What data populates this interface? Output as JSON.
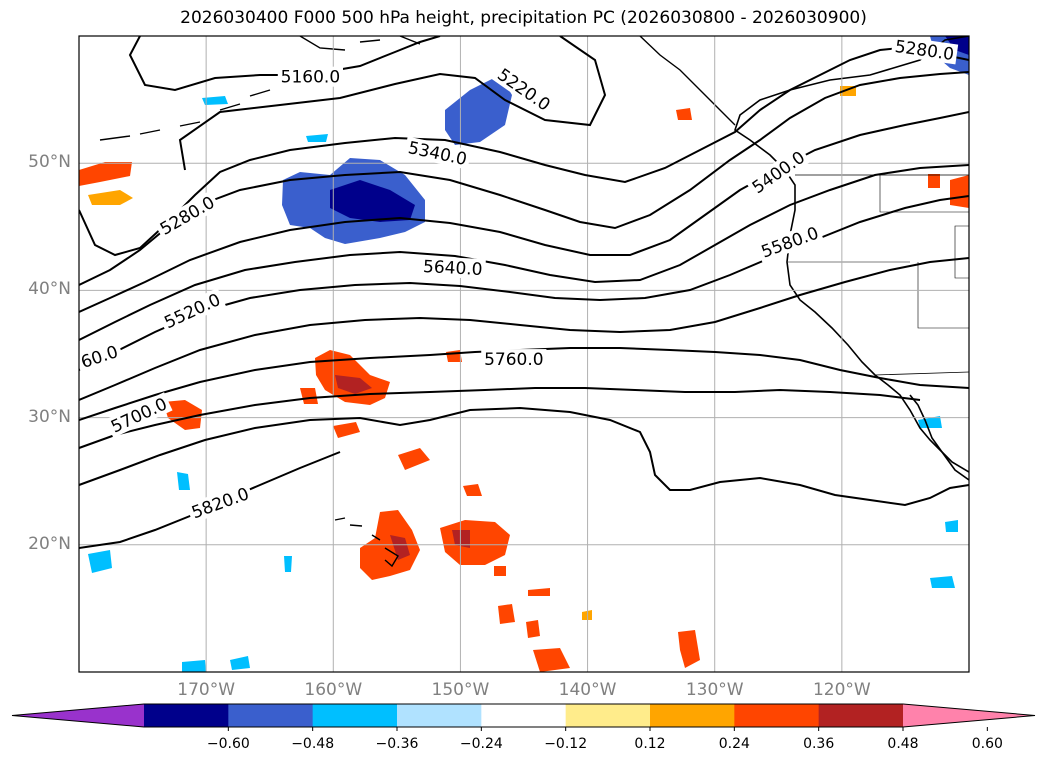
{
  "title": "2026030400 F000 500 hPa height, precipitation PC (2026030800 - 2026030900)",
  "map": {
    "lon_range": [
      -180,
      -110
    ],
    "lat_range": [
      10,
      60
    ],
    "lat_ticks": [
      {
        "value": 20,
        "label": "20°N"
      },
      {
        "value": 30,
        "label": "30°N"
      },
      {
        "value": 40,
        "label": "40°N"
      },
      {
        "value": 50,
        "label": "50°N"
      }
    ],
    "lon_ticks": [
      {
        "value": -170,
        "label": "170°W"
      },
      {
        "value": -160,
        "label": "160°W"
      },
      {
        "value": -150,
        "label": "150°W"
      },
      {
        "value": -140,
        "label": "140°W"
      },
      {
        "value": -130,
        "label": "130°W"
      },
      {
        "value": -120,
        "label": "120°W"
      }
    ],
    "grid": true
  },
  "contour_labels": [
    {
      "text": "5160.0",
      "lon": -161.8,
      "lat": 56.8,
      "angle": 0
    },
    {
      "text": "5220.0",
      "lon": -145.0,
      "lat": 55.8,
      "angle": 35
    },
    {
      "text": "5280.0",
      "lon": -113.5,
      "lat": 58.9,
      "angle": 8
    },
    {
      "text": "5340.0",
      "lon": -151.8,
      "lat": 50.8,
      "angle": 12
    },
    {
      "text": "5400.0",
      "lon": -125.0,
      "lat": 49.3,
      "angle": -35
    },
    {
      "text": "5280.0",
      "lon": -171.5,
      "lat": 45.9,
      "angle": -30
    },
    {
      "text": "5580.0",
      "lon": -124.1,
      "lat": 43.8,
      "angle": -20
    },
    {
      "text": "5640.0",
      "lon": -150.6,
      "lat": 41.8,
      "angle": 3
    },
    {
      "text": "5520.0",
      "lon": -171.1,
      "lat": 38.4,
      "angle": -25
    },
    {
      "text": "60.0",
      "lon": -178.4,
      "lat": 34.8,
      "angle": -18
    },
    {
      "text": "5760.0",
      "lon": -145.8,
      "lat": 34.6,
      "angle": 0
    },
    {
      "text": "5700.0",
      "lon": -175.3,
      "lat": 30.2,
      "angle": -25
    },
    {
      "text": "5820.0",
      "lon": -168.9,
      "lat": 23.3,
      "angle": -20
    }
  ],
  "colorbar": {
    "colors": [
      "#9932cc",
      "#00008b",
      "#3a5fcd",
      "#00bfff",
      "#b0e2ff",
      "#ffffff",
      "#ffec8b",
      "#ffa500",
      "#ff4500",
      "#b22222",
      "#ff82ab"
    ],
    "ticks": [
      "−0.60",
      "−0.48",
      "−0.36",
      "−0.24",
      "−0.12",
      "0.12",
      "0.24",
      "0.36",
      "0.48",
      "0.60"
    ]
  }
}
